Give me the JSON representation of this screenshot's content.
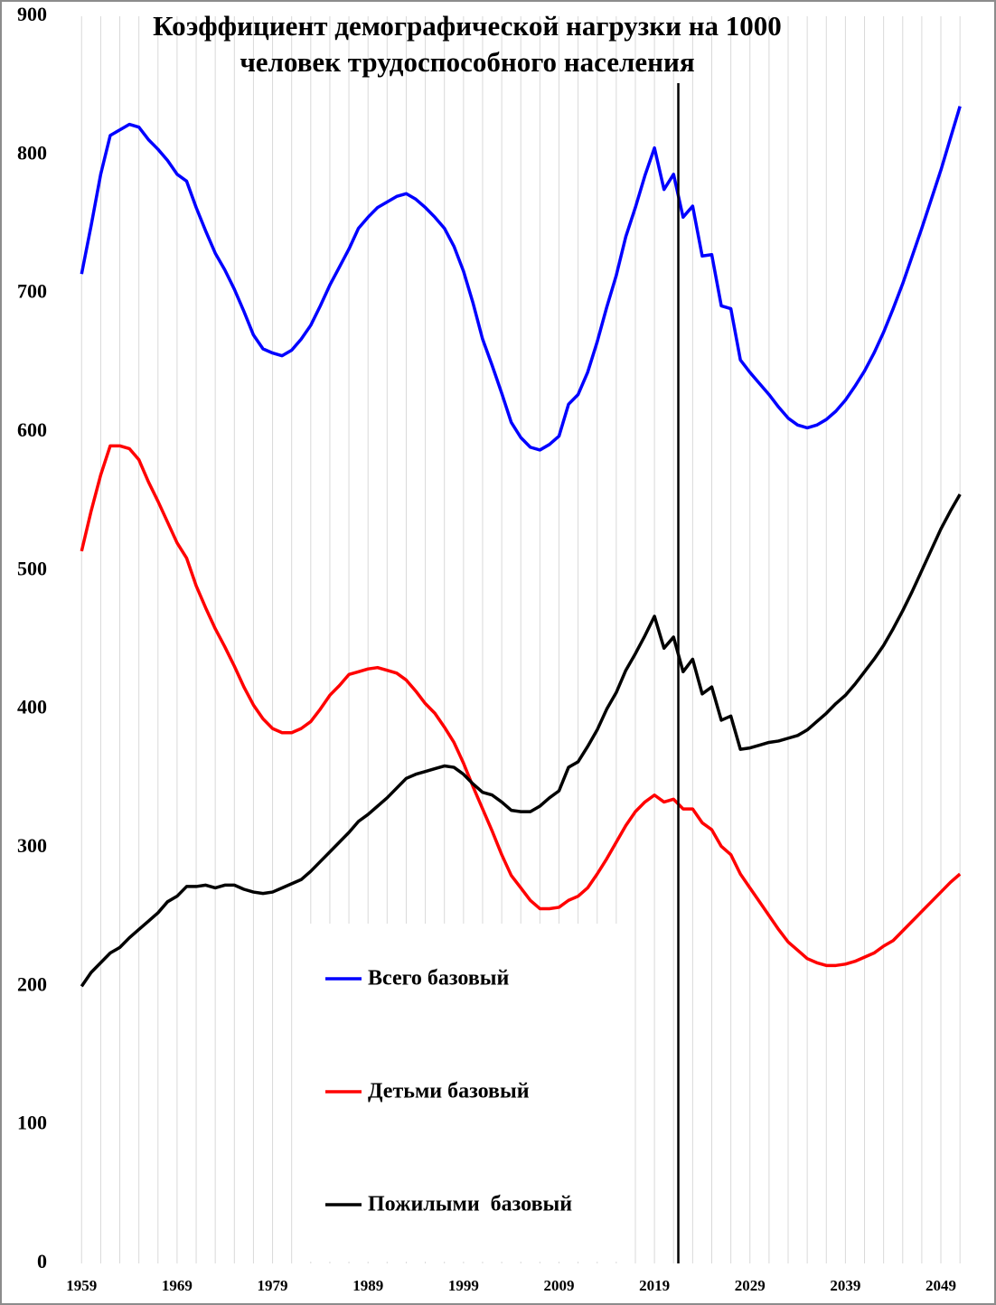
{
  "chart_data": {
    "type": "line",
    "title": [
      "Коэффициент демографической нагрузки на 1000",
      "человек трудоспособного населения"
    ],
    "x": [
      1959,
      1960,
      1961,
      1962,
      1963,
      1964,
      1965,
      1966,
      1967,
      1968,
      1969,
      1970,
      1971,
      1972,
      1973,
      1974,
      1975,
      1976,
      1977,
      1978,
      1979,
      1980,
      1981,
      1982,
      1983,
      1984,
      1985,
      1986,
      1987,
      1988,
      1989,
      1990,
      1991,
      1992,
      1993,
      1994,
      1995,
      1996,
      1997,
      1998,
      1999,
      2000,
      2001,
      2002,
      2003,
      2004,
      2005,
      2006,
      2007,
      2008,
      2009,
      2010,
      2011,
      2012,
      2013,
      2014,
      2015,
      2016,
      2017,
      2018,
      2019,
      2020,
      2021,
      2022,
      2023,
      2024,
      2025,
      2026,
      2027,
      2028,
      2029,
      2030,
      2031,
      2032,
      2033,
      2034,
      2035,
      2036,
      2037,
      2038,
      2039,
      2040,
      2041,
      2042,
      2043,
      2044,
      2045,
      2046,
      2047,
      2048,
      2049,
      2050,
      2051
    ],
    "series": [
      {
        "name": "Всего базовый",
        "color": "#0000ff",
        "values": [
          714,
          749,
          786,
          814,
          818,
          822,
          820,
          811,
          804,
          796,
          786,
          781,
          762,
          745,
          729,
          717,
          703,
          687,
          670,
          660,
          657,
          655,
          659,
          667,
          677,
          691,
          706,
          719,
          732,
          747,
          755,
          762,
          766,
          770,
          772,
          768,
          762,
          755,
          747,
          734,
          716,
          693,
          667,
          648,
          628,
          607,
          596,
          589,
          587,
          591,
          597,
          620,
          627,
          643,
          665,
          690,
          713,
          741,
          762,
          785,
          805,
          775,
          786,
          755,
          763,
          727,
          728,
          691,
          689,
          652,
          643,
          635,
          627,
          618,
          610,
          605,
          603,
          605,
          609,
          615,
          623,
          633,
          644,
          657,
          672,
          689,
          707,
          727,
          747,
          768,
          789,
          812,
          835
        ]
      },
      {
        "name": "Детьми базовый",
        "color": "#ff0000",
        "values": [
          514,
          543,
          569,
          590,
          590,
          588,
          580,
          564,
          550,
          535,
          520,
          509,
          489,
          473,
          458,
          445,
          431,
          416,
          403,
          393,
          386,
          383,
          383,
          386,
          391,
          400,
          410,
          417,
          425,
          427,
          429,
          430,
          428,
          426,
          421,
          413,
          404,
          397,
          387,
          376,
          361,
          344,
          328,
          312,
          295,
          280,
          271,
          262,
          256,
          256,
          257,
          262,
          265,
          271,
          281,
          292,
          304,
          316,
          326,
          333,
          338,
          333,
          335,
          328,
          328,
          318,
          313,
          301,
          295,
          281,
          271,
          261,
          251,
          241,
          232,
          226,
          220,
          217,
          215,
          215,
          216,
          218,
          221,
          224,
          229,
          233,
          240,
          247,
          254,
          261,
          268,
          275,
          281
        ]
      },
      {
        "name": "Пожилыми  базовый",
        "color": "#000000",
        "values": [
          200,
          210,
          217,
          224,
          228,
          235,
          241,
          247,
          253,
          261,
          265,
          272,
          272,
          273,
          271,
          273,
          273,
          270,
          268,
          267,
          268,
          271,
          274,
          277,
          283,
          290,
          297,
          304,
          311,
          319,
          324,
          330,
          336,
          343,
          350,
          353,
          355,
          357,
          359,
          358,
          353,
          346,
          340,
          338,
          333,
          327,
          326,
          326,
          330,
          336,
          341,
          358,
          362,
          373,
          385,
          400,
          412,
          428,
          440,
          453,
          467,
          444,
          452,
          427,
          436,
          411,
          416,
          392,
          395,
          371,
          372,
          374,
          376,
          377,
          379,
          381,
          385,
          391,
          397,
          404,
          410,
          418,
          427,
          436,
          446,
          458,
          471,
          485,
          500,
          515,
          530,
          543,
          555
        ]
      }
    ],
    "xlim": [
      1958.5,
      2052.5
    ],
    "xticks": [
      1959,
      1969,
      1979,
      1989,
      1999,
      2009,
      2019,
      2029,
      2039,
      2049
    ],
    "xminorticks": [
      1959,
      1961,
      1963,
      1965,
      1967,
      1969,
      1971,
      1973,
      1975,
      1977,
      1979,
      1981,
      1983,
      1985,
      1987,
      1989,
      1991,
      1993,
      1995,
      1997,
      1999,
      2001,
      2003,
      2005,
      2007,
      2009,
      2011,
      2013,
      2015,
      2017,
      2019,
      2021,
      2023,
      2025,
      2027,
      2029,
      2031,
      2033,
      2035,
      2037,
      2039,
      2041,
      2043,
      2045,
      2047,
      2049,
      2051
    ],
    "ylim": [
      0,
      900
    ],
    "yticks": [
      0,
      100,
      200,
      300,
      400,
      500,
      600,
      700,
      800,
      900
    ],
    "vline": 2021.5,
    "grid": true,
    "legend": "lower center"
  }
}
